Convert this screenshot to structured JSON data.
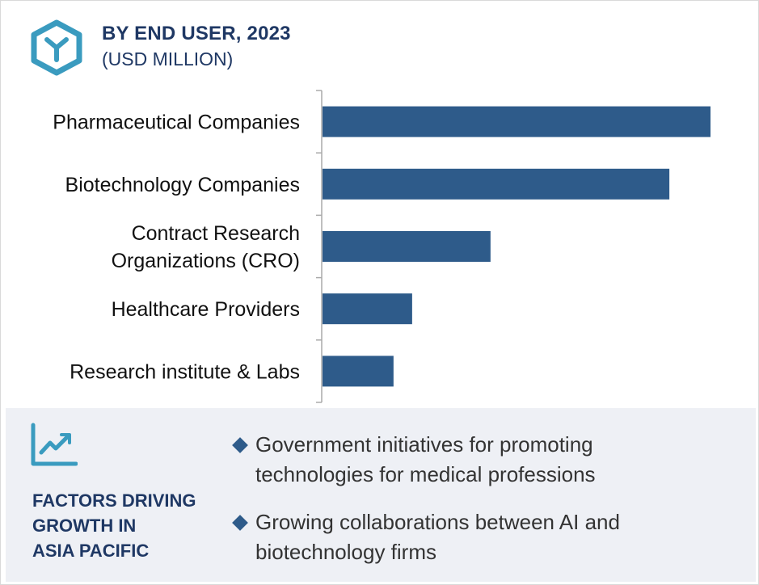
{
  "header": {
    "title": "BY END USER, 2023",
    "subtitle": "(USD MILLION)",
    "icon": "hexagon-y-icon"
  },
  "chart_data": {
    "type": "bar",
    "orientation": "horizontal",
    "title": "BY END USER, 2023",
    "subtitle": "(USD MILLION)",
    "categories": [
      [
        "Pharmaceutical Companies"
      ],
      [
        "Biotechnology Companies"
      ],
      [
        "Contract Research",
        "Organizations (CRO)"
      ],
      [
        "Healthcare Providers"
      ],
      [
        "Research institute & Labs"
      ]
    ],
    "values": [
      100,
      89.4,
      43.3,
      23.1,
      18.3
    ],
    "xlim": [
      0,
      100
    ],
    "grid": false,
    "legend": "none",
    "bar_color": "#2e5b8a"
  },
  "factors": {
    "icon": "trend-line-icon",
    "title_lines": [
      "FACTORS DRIVING",
      "GROWTH IN",
      "ASIA PACIFIC"
    ],
    "bullets": [
      {
        "lines": [
          "Government initiatives for promoting",
          "technologies for medical professions"
        ]
      },
      {
        "lines": [
          "Growing collaborations between AI and",
          "biotechnology firms"
        ]
      }
    ]
  },
  "colors": {
    "accent": "#2e5b8a",
    "title": "#1f3864",
    "icon": "#3a9bbf",
    "panel": "#eef0f5"
  }
}
